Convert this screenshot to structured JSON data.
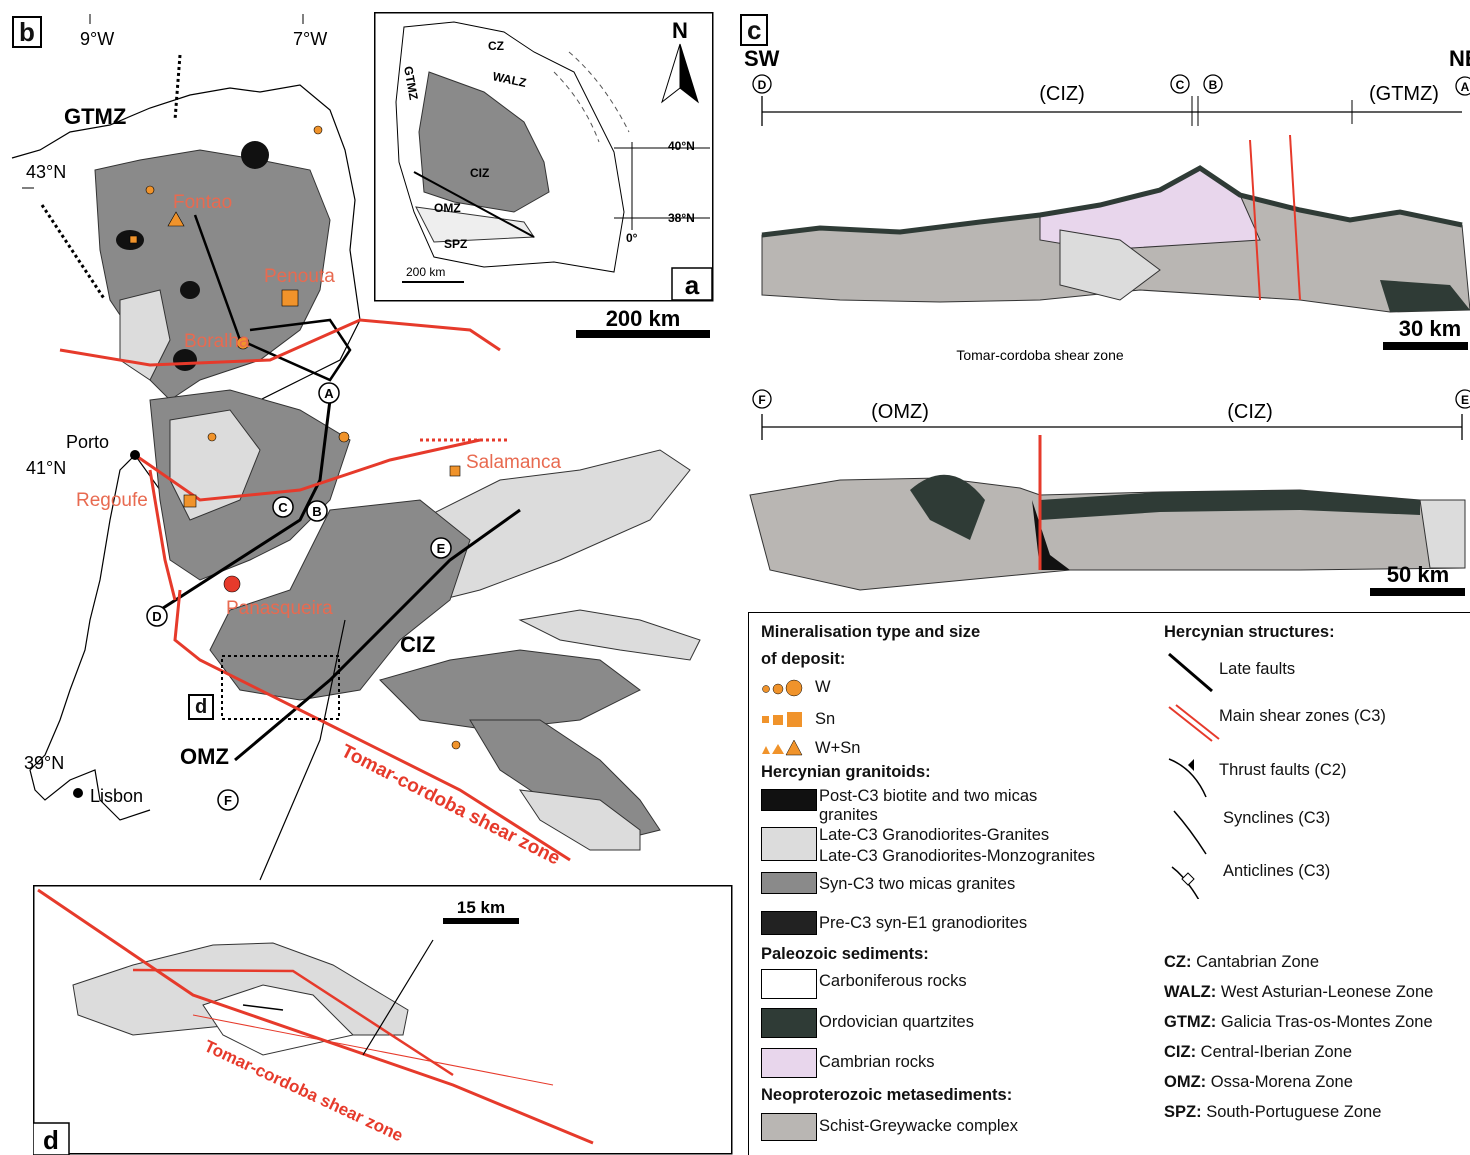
{
  "panel_b": {
    "letter": "b",
    "longitudes": [
      "9°W",
      "7°W"
    ],
    "latitudes": [
      "43°N",
      "41°N",
      "39°N"
    ],
    "zones": [
      "GTMZ",
      "CIZ",
      "OMZ"
    ],
    "cities": [
      "Porto",
      "Lisbon"
    ],
    "deposits": [
      "Fontao",
      "Penouta",
      "Boralha",
      "Salamanca",
      "Regoufe",
      "Panasqueira"
    ],
    "section_points": [
      "A",
      "B",
      "C",
      "D",
      "E",
      "F"
    ],
    "shear_zone_label": "Tomar-cordoba shear zone",
    "scale": "200 km"
  },
  "panel_a": {
    "letter": "a",
    "north": "N",
    "zones": [
      "CZ",
      "WALZ",
      "GTMZ",
      "CIZ",
      "OMZ",
      "SPZ"
    ],
    "latitudes": [
      "40°N",
      "38°N"
    ],
    "longitude": "0°",
    "scale": "200 km"
  },
  "panel_c": {
    "letter": "c",
    "left_dir": "SW",
    "right_dir": "NE",
    "top_points": [
      "D",
      "C",
      "B",
      "A"
    ],
    "top_zones": [
      "(CIZ)",
      "(GTMZ)"
    ],
    "top_scale": "30 km",
    "shear_title": "Tomar-cordoba shear zone",
    "bottom_points": [
      "F",
      "E"
    ],
    "bottom_zones": [
      "(OMZ)",
      "(CIZ)"
    ],
    "bottom_scale": "50 km"
  },
  "panel_d": {
    "letter": "d",
    "scale": "15 km",
    "shear_zone_label": "Tomar-cordoba shear zone"
  },
  "legend": {
    "mineral_title_1": "Mineralisation type and size",
    "mineral_title_2": "of deposit:",
    "w": "W",
    "sn": "Sn",
    "wsn": "W+Sn",
    "granitoids_title": "Hercynian granitoids:",
    "post_c3_1": "Post-C3 biotite and two micas",
    "post_c3_2": "granites",
    "late_c3_a": "Late-C3 Granodiorites-Granites",
    "late_c3_b": "Late-C3 Granodiorites-Monzogranites",
    "syn_c3": "Syn-C3 two micas granites",
    "pre_c3": "Pre-C3 syn-E1 granodiorites",
    "paleozoic_title": "Paleozoic sediments:",
    "carboniferous": "Carboniferous rocks",
    "ordovician": "Ordovician quartzites",
    "cambrian": "Cambrian rocks",
    "neoproterozoic_title": "Neoproterozoic  metasediments:",
    "schist": "Schist-Greywacke complex",
    "structures_title": "Hercynian structures:",
    "late_faults": "Late faults",
    "main_shear": "Main shear zones (C3)",
    "thrust": "Thrust faults  (C2)",
    "synclines": "Synclines (C3)",
    "anticlines": "Anticlines (C3)",
    "abbreviations": [
      {
        "code": "CZ:",
        "name": "Cantabrian Zone"
      },
      {
        "code": "WALZ:",
        "name": "West Asturian-Leonese Zone"
      },
      {
        "code": "GTMZ:",
        "name": "Galicia Tras-os-Montes Zone"
      },
      {
        "code": "CIZ:",
        "name": "Central-Iberian Zone"
      },
      {
        "code": "OMZ:",
        "name": "Ossa-Morena Zone"
      },
      {
        "code": "SPZ:",
        "name": "South-Portuguese Zone"
      }
    ]
  },
  "colors": {
    "red": "#e63a2b",
    "orange": "#f0932b",
    "dark_grey": "#8a8a8a",
    "light_grey": "#dcdcdc",
    "ordovician": "#2f3b36",
    "cambrian": "#e8d6ec",
    "schist": "#b9b6b3"
  }
}
